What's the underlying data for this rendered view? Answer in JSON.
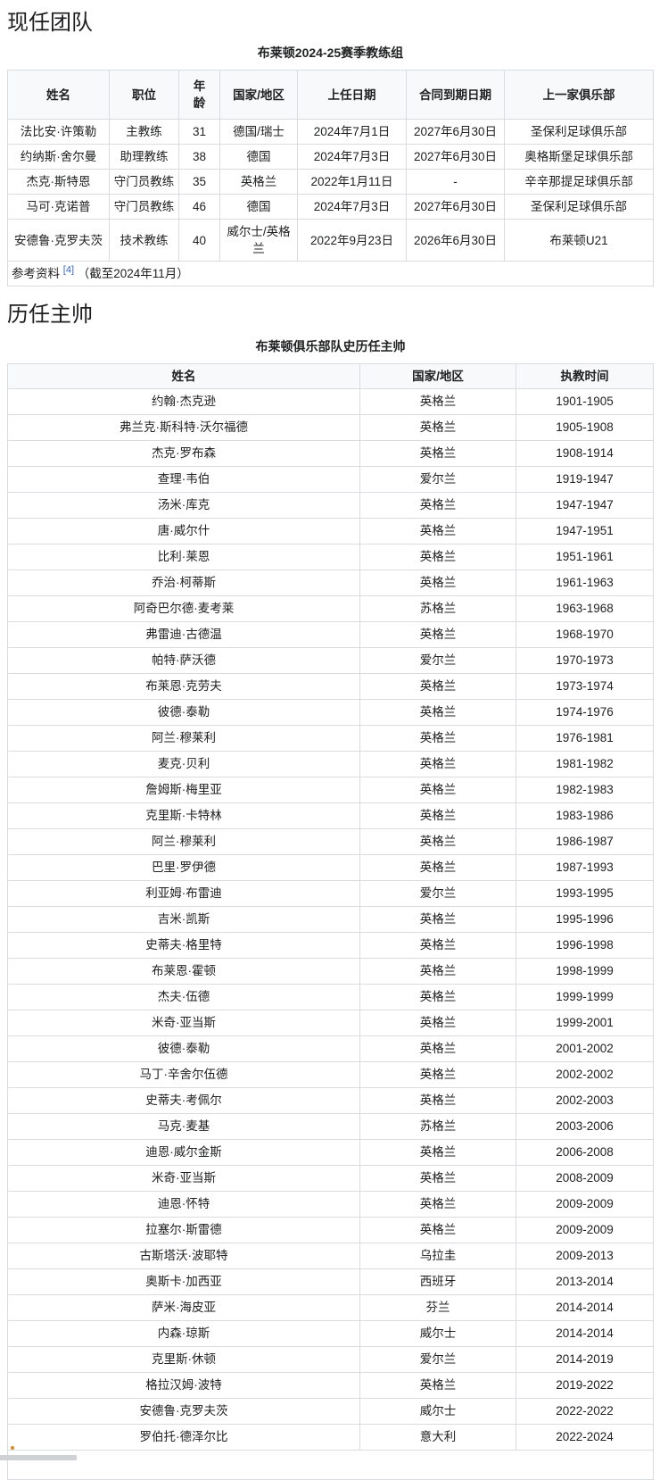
{
  "sections": {
    "current_team_title": "现任团队",
    "past_managers_title": "历任主帅"
  },
  "colors": {
    "link_blue": "#3366cc",
    "header_bg": "#f8f9fa",
    "table_border": "#c8ccd1",
    "marker_orange": "#d98a26"
  },
  "staff_table": {
    "caption": "布莱顿2024-25赛季教练组",
    "headers": [
      "姓名",
      "职位",
      "年龄",
      "国家/地区",
      "上任日期",
      "合同到期日期",
      "上一家俱乐部"
    ],
    "rows": [
      [
        "法比安·许策勒",
        "主教练",
        "31",
        "德国/瑞士",
        "2024年7月1日",
        "2027年6月30日",
        "圣保利足球俱乐部"
      ],
      [
        "约纳斯·舍尔曼",
        "助理教练",
        "38",
        "德国",
        "2024年7月3日",
        "2027年6月30日",
        "奥格斯堡足球俱乐部"
      ],
      [
        "杰克·斯特恩",
        "守门员教练",
        "35",
        "英格兰",
        "2022年1月11日",
        "-",
        "辛辛那提足球俱乐部"
      ],
      [
        "马可·克诺普",
        "守门员教练",
        "46",
        "德国",
        "2024年7月3日",
        "2027年6月30日",
        "圣保利足球俱乐部"
      ],
      [
        "安德鲁·克罗夫茨",
        "技术教练",
        "40",
        "威尔士/英格兰",
        "2022年9月23日",
        "2026年6月30日",
        "布莱顿U21"
      ]
    ],
    "footer": {
      "label": "参考资料",
      "ref_label": "[4]",
      "note": "（截至2024年11月）"
    }
  },
  "managers_table": {
    "caption": "布莱顿俱乐部队史历任主帅",
    "headers": [
      "姓名",
      "国家/地区",
      "执教时间"
    ],
    "rows": [
      [
        "约翰·杰克逊",
        "英格兰",
        "1901-1905"
      ],
      [
        "弗兰克·斯科特·沃尔福德",
        "英格兰",
        "1905-1908"
      ],
      [
        "杰克·罗布森",
        "英格兰",
        "1908-1914"
      ],
      [
        "查理·韦伯",
        "爱尔兰",
        "1919-1947"
      ],
      [
        "汤米·库克",
        "英格兰",
        "1947-1947"
      ],
      [
        "唐·威尔什",
        "英格兰",
        "1947-1951"
      ],
      [
        "比利·莱恩",
        "英格兰",
        "1951-1961"
      ],
      [
        "乔治·柯蒂斯",
        "英格兰",
        "1961-1963"
      ],
      [
        "阿奇巴尔德·麦考莱",
        "苏格兰",
        "1963-1968"
      ],
      [
        "弗雷迪·古德温",
        "英格兰",
        "1968-1970"
      ],
      [
        "帕特·萨沃德",
        "爱尔兰",
        "1970-1973"
      ],
      [
        "布莱恩·克劳夫",
        "英格兰",
        "1973-1974"
      ],
      [
        "彼德·泰勒",
        "英格兰",
        "1974-1976"
      ],
      [
        "阿兰·穆莱利",
        "英格兰",
        "1976-1981"
      ],
      [
        "麦克·贝利",
        "英格兰",
        "1981-1982"
      ],
      [
        "詹姆斯·梅里亚",
        "英格兰",
        "1982-1983"
      ],
      [
        "克里斯·卡特林",
        "英格兰",
        "1983-1986"
      ],
      [
        "阿兰·穆莱利",
        "英格兰",
        "1986-1987"
      ],
      [
        "巴里·罗伊德",
        "英格兰",
        "1987-1993"
      ],
      [
        "利亚姆·布雷迪",
        "爱尔兰",
        "1993-1995"
      ],
      [
        "吉米·凯斯",
        "英格兰",
        "1995-1996"
      ],
      [
        "史蒂夫·格里特",
        "英格兰",
        "1996-1998"
      ],
      [
        "布莱恩·霍顿",
        "英格兰",
        "1998-1999"
      ],
      [
        "杰夫·伍德",
        "英格兰",
        "1999-1999"
      ],
      [
        "米奇·亚当斯",
        "英格兰",
        "1999-2001"
      ],
      [
        "彼德·泰勒",
        "英格兰",
        "2001-2002"
      ],
      [
        "马丁·辛舍尔伍德",
        "英格兰",
        "2002-2002"
      ],
      [
        "史蒂夫·考佩尔",
        "英格兰",
        "2002-2003"
      ],
      [
        "马克·麦基",
        "苏格兰",
        "2003-2006"
      ],
      [
        "迪恩·威尔金斯",
        "英格兰",
        "2006-2008"
      ],
      [
        "米奇·亚当斯",
        "英格兰",
        "2008-2009"
      ],
      [
        "迪恩·怀特",
        "英格兰",
        "2009-2009"
      ],
      [
        "拉塞尔·斯雷德",
        "英格兰",
        "2009-2009"
      ],
      [
        "古斯塔沃·波耶特",
        "乌拉圭",
        "2009-2013"
      ],
      [
        "奥斯卡·加西亚",
        "西班牙",
        "2013-2014"
      ],
      [
        "萨米·海皮亚",
        "芬兰",
        "2014-2014"
      ],
      [
        "内森·琼斯",
        "威尔士",
        "2014-2014"
      ],
      [
        "克里斯·休顿",
        "爱尔兰",
        "2014-2019"
      ],
      [
        "格拉汉姆·波特",
        "英格兰",
        "2019-2022"
      ],
      [
        "安德鲁·克罗夫茨",
        "威尔士",
        "2022-2022"
      ],
      [
        "罗伯托·德泽尔比",
        "意大利",
        "2022-2024"
      ]
    ]
  }
}
